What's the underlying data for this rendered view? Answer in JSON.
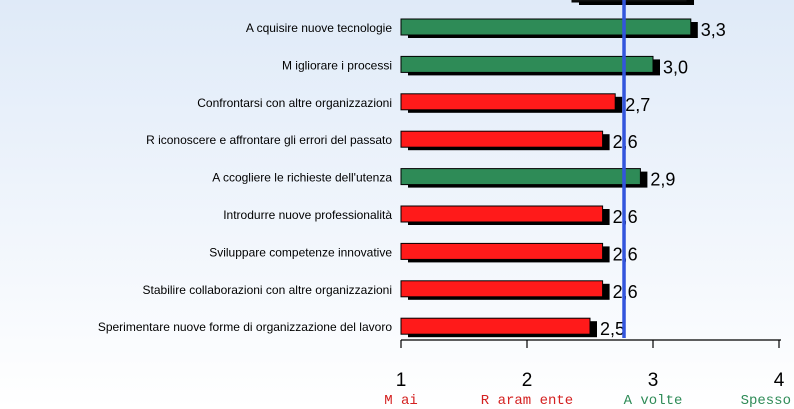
{
  "chart_data": {
    "type": "bar",
    "orientation": "horizontal",
    "categories": [
      "A cquisire nuove tecnologie",
      "M igliorare i processi",
      "Confrontarsi con altre organizzazioni",
      "R iconoscere e affrontare gli errori del passato",
      "A ccogliere le richieste dell'utenza",
      "Introdurre nuove professionalità",
      "Sviluppare competenze innovative",
      "Stabilire collaborazioni con altre organizzazioni",
      "Sperimentare nuove forme di organizzazione del lavoro"
    ],
    "values": [
      3.3,
      3.0,
      2.7,
      2.6,
      2.9,
      2.6,
      2.6,
      2.6,
      2.5
    ],
    "value_labels": [
      "3,3",
      "3,0",
      "2,7",
      "2,6",
      "2,9",
      "2,6",
      "2,6",
      "2,6",
      "2,5"
    ],
    "bar_colors": [
      "#2e8b57",
      "#2e8b57",
      "#ff1a1a",
      "#ff1a1a",
      "#2e8b57",
      "#ff1a1a",
      "#ff1a1a",
      "#ff1a1a",
      "#ff1a1a"
    ],
    "xlim": [
      1,
      4
    ],
    "x_ticks": [
      {
        "value": 1,
        "label": "1",
        "word": "M ai",
        "color": "#d42020"
      },
      {
        "value": 2,
        "label": "2",
        "word": "R aram ente",
        "color": "#d42020"
      },
      {
        "value": 3,
        "label": "3",
        "word": "A volte",
        "color": "#2e8b57"
      },
      {
        "value": 4,
        "label": "4",
        "word": "Spesso",
        "color": "#2e8b57"
      }
    ],
    "reference_line": {
      "value": 2.77,
      "color": "#3355dd"
    },
    "partial_top_bar_value": 3.27
  }
}
